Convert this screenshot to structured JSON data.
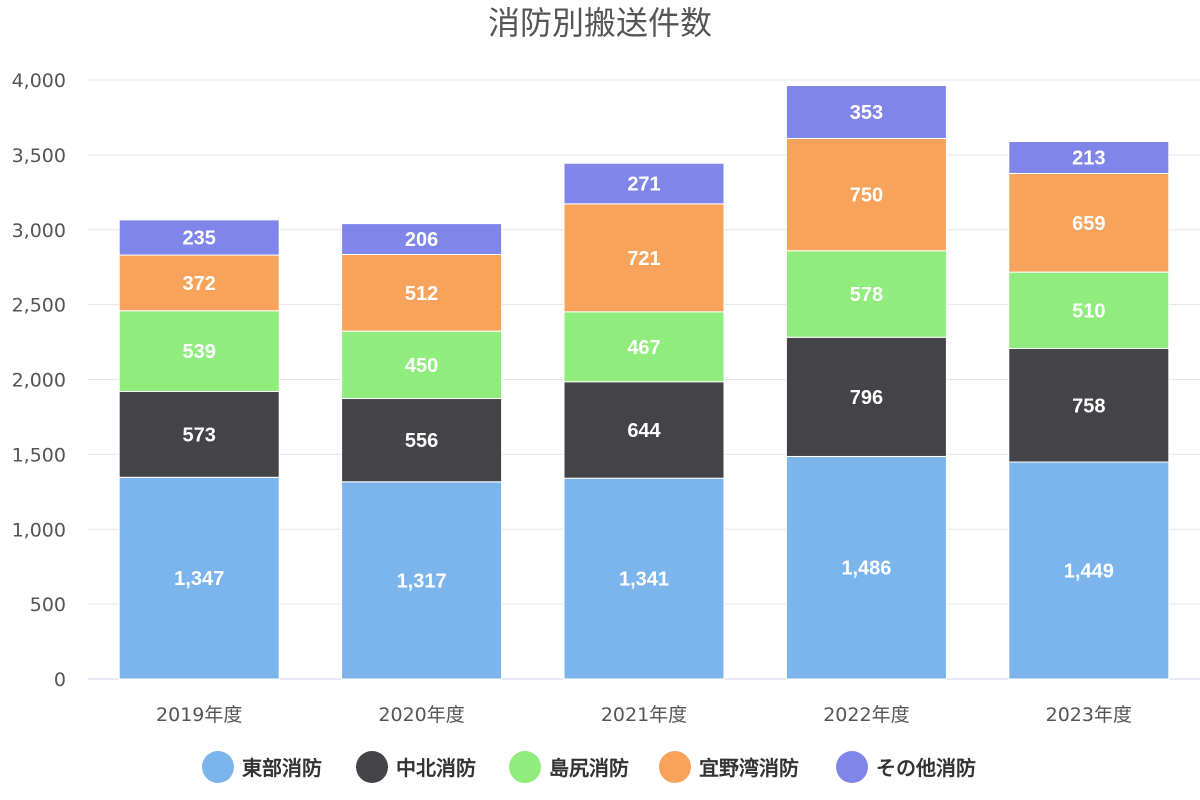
{
  "chart_data": {
    "type": "bar",
    "stacked": true,
    "title": "消防別搬送件数",
    "categories": [
      "2019年度",
      "2020年度",
      "2021年度",
      "2022年度",
      "2023年度"
    ],
    "ylim": [
      0,
      4000
    ],
    "yticks": [
      0,
      500,
      1000,
      1500,
      2000,
      2500,
      3000,
      3500,
      4000
    ],
    "ytick_labels": [
      "0",
      "500",
      "1,000",
      "1,500",
      "2,000",
      "2,500",
      "3,000",
      "3,500",
      "4,000"
    ],
    "grid": true,
    "legend_position": "bottom",
    "series": [
      {
        "name": "東部消防",
        "color": "#7cb5ec",
        "values": [
          1347,
          1317,
          1341,
          1486,
          1449
        ]
      },
      {
        "name": "中北消防",
        "color": "#434348",
        "values": [
          573,
          556,
          644,
          796,
          758
        ]
      },
      {
        "name": "島尻消防",
        "color": "#90ed7d",
        "values": [
          539,
          450,
          467,
          578,
          510
        ]
      },
      {
        "name": "宜野湾消防",
        "color": "#f7a35c",
        "values": [
          372,
          512,
          721,
          750,
          659
        ]
      },
      {
        "name": "その他消防",
        "color": "#8085e9",
        "values": [
          235,
          206,
          271,
          353,
          213
        ]
      }
    ]
  }
}
